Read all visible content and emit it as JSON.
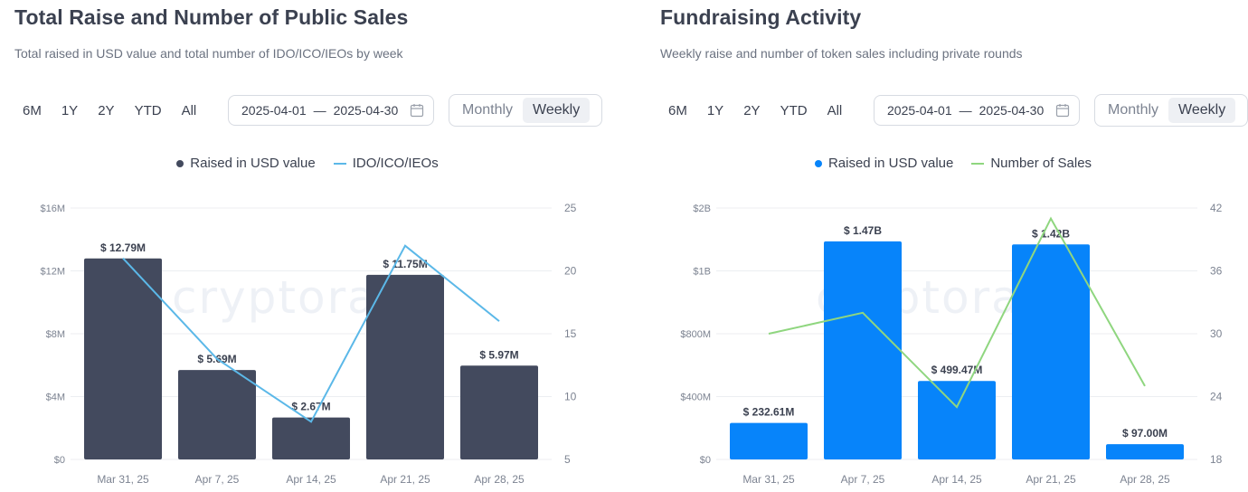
{
  "left": {
    "title": "Total Raise and Number of Public Sales",
    "subtitle": "Total raised in USD value and total number of IDO/ICO/IEOs by week",
    "ranges": [
      "6M",
      "1Y",
      "2Y",
      "YTD",
      "All"
    ],
    "date_from": "2025-04-01",
    "date_sep": "—",
    "date_to": "2025-04-30",
    "toggle": [
      "Monthly",
      "Weekly"
    ],
    "toggle_active": "Weekly",
    "watermark": "cryptorank",
    "bar_color": "#434a5e",
    "line_color": "#5bb8e8"
  },
  "right": {
    "title": "Fundraising Activity",
    "subtitle": "Weekly raise and number of token sales including private rounds",
    "ranges": [
      "6M",
      "1Y",
      "2Y",
      "YTD",
      "All"
    ],
    "date_from": "2025-04-01",
    "date_sep": "—",
    "date_to": "2025-04-30",
    "toggle": [
      "Monthly",
      "Weekly"
    ],
    "toggle_active": "Weekly",
    "watermark": "cryptorank",
    "bar_color": "#0784fa",
    "line_color": "#8fd67f"
  },
  "chart_data": [
    {
      "type": "bar",
      "categories": [
        "Mar 31, 25",
        "Apr 7, 25",
        "Apr 14, 25",
        "Apr 21, 25",
        "Apr 28, 25"
      ],
      "series": [
        {
          "name": "Raised in USD value",
          "kind": "bar",
          "axis": "left",
          "values": [
            12.79,
            5.69,
            2.67,
            11.75,
            5.97
          ],
          "labels": [
            "$ 12.79M",
            "$ 5.69M",
            "$ 2.67M",
            "$ 11.75M",
            "$ 5.97M"
          ]
        },
        {
          "name": "IDO/ICO/IEOs",
          "kind": "line",
          "axis": "right",
          "values": [
            21,
            13,
            8,
            22,
            16
          ]
        }
      ],
      "y_left": {
        "ylim": [
          0,
          16
        ],
        "ticks": [
          0,
          4,
          8,
          12,
          16
        ],
        "tick_labels": [
          "$0",
          "$4M",
          "$8M",
          "$12M",
          "$16M"
        ]
      },
      "y_right": {
        "ylim": [
          5,
          25
        ],
        "ticks": [
          5,
          10,
          15,
          20,
          25
        ],
        "tick_labels": [
          "5",
          "10",
          "15",
          "20",
          "25"
        ]
      },
      "grid": true,
      "legend": "top-center"
    },
    {
      "type": "bar",
      "categories": [
        "Mar 31, 25",
        "Apr 7, 25",
        "Apr 14, 25",
        "Apr 21, 25",
        "Apr 28, 25"
      ],
      "series": [
        {
          "name": "Raised in USD value",
          "kind": "bar",
          "axis": "left",
          "values": [
            232.61,
            1470,
            499.47,
            1420,
            97.0
          ],
          "labels": [
            "$ 232.61M",
            "$ 1.47B",
            "$ 499.47M",
            "$ 1.42B",
            "$ 97.00M"
          ]
        },
        {
          "name": "Number of Sales",
          "kind": "line",
          "axis": "right",
          "values": [
            30,
            32,
            23,
            41,
            25
          ]
        }
      ],
      "y_left": {
        "ylim": [
          0,
          2000
        ],
        "ticks": [
          0,
          400,
          800,
          1000,
          2000
        ],
        "tick_labels": [
          "$0",
          "$400M",
          "$800M",
          "$1B",
          "$2B"
        ]
      },
      "y_right": {
        "ylim": [
          18,
          42
        ],
        "ticks": [
          18,
          24,
          30,
          36,
          42
        ],
        "tick_labels": [
          "18",
          "24",
          "30",
          "36",
          "42"
        ]
      },
      "grid": true,
      "legend": "top-center"
    }
  ]
}
